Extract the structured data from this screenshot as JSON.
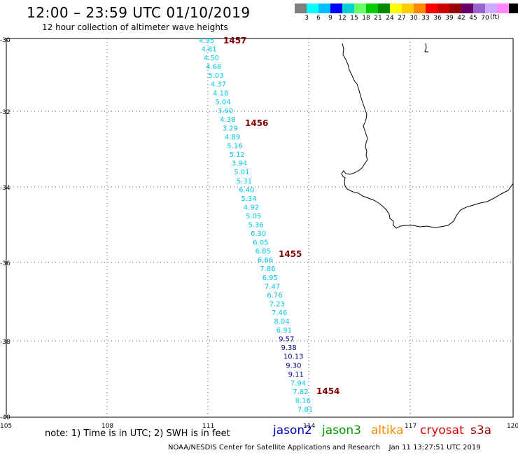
{
  "header": {
    "title": "12:00 – 23:59 UTC 01/10/2019",
    "subtitle": "12 hour collection of altimeter wave heights"
  },
  "legend": {
    "colors": [
      "#7f7f7f",
      "#00ffff",
      "#00bfff",
      "#0000ff",
      "#00d0d0",
      "#66ff66",
      "#00cc00",
      "#008800",
      "#ffff00",
      "#ffcc00",
      "#ff8800",
      "#ff0000",
      "#cc0000",
      "#990000",
      "#660066",
      "#9966cc",
      "#ccaaff",
      "#ff88ff",
      "#000000"
    ],
    "labels": [
      "3",
      "6",
      "9",
      "12",
      "15",
      "18",
      "21",
      "24",
      "27",
      "30",
      "33",
      "36",
      "39",
      "42",
      "45",
      "70"
    ],
    "unit": "(ft)"
  },
  "axes": {
    "lat_labels": [
      "-30",
      "-32",
      "-34",
      "-36",
      "-38",
      "-40"
    ],
    "lon_labels": [
      "105",
      "108",
      "111",
      "114",
      "117",
      "120"
    ]
  },
  "track": {
    "cyan_color": "#00c8e8",
    "blue_color": "#00008b",
    "points": [
      {
        "v": "4.95",
        "c": "cyan"
      },
      {
        "v": "4.81",
        "c": "cyan"
      },
      {
        "v": "4.50",
        "c": "cyan"
      },
      {
        "v": "4.68",
        "c": "cyan"
      },
      {
        "v": "5.03",
        "c": "cyan"
      },
      {
        "v": "4.37",
        "c": "cyan"
      },
      {
        "v": "4.18",
        "c": "cyan"
      },
      {
        "v": "5.04",
        "c": "cyan"
      },
      {
        "v": "3.60",
        "c": "cyan"
      },
      {
        "v": "4.38",
        "c": "cyan"
      },
      {
        "v": "3.29",
        "c": "cyan"
      },
      {
        "v": "4.89",
        "c": "cyan"
      },
      {
        "v": "5.16",
        "c": "cyan"
      },
      {
        "v": "5.12",
        "c": "cyan"
      },
      {
        "v": "3.94",
        "c": "cyan"
      },
      {
        "v": "5.01",
        "c": "cyan"
      },
      {
        "v": "5.31",
        "c": "cyan"
      },
      {
        "v": "6.40",
        "c": "cyan"
      },
      {
        "v": "5.34",
        "c": "cyan"
      },
      {
        "v": "4.92",
        "c": "cyan"
      },
      {
        "v": "5.05",
        "c": "cyan"
      },
      {
        "v": "5.36",
        "c": "cyan"
      },
      {
        "v": "6.30",
        "c": "cyan"
      },
      {
        "v": "6.05",
        "c": "cyan"
      },
      {
        "v": "6.85",
        "c": "cyan"
      },
      {
        "v": "6.66",
        "c": "cyan"
      },
      {
        "v": "7.86",
        "c": "cyan"
      },
      {
        "v": "6.95",
        "c": "cyan"
      },
      {
        "v": "7.47",
        "c": "cyan"
      },
      {
        "v": "6.76",
        "c": "cyan"
      },
      {
        "v": "7.23",
        "c": "cyan"
      },
      {
        "v": "7.46",
        "c": "cyan"
      },
      {
        "v": "8.04",
        "c": "cyan"
      },
      {
        "v": "6.91",
        "c": "cyan"
      },
      {
        "v": "9.57",
        "c": "blue"
      },
      {
        "v": "9.38",
        "c": "blue"
      },
      {
        "v": "10.13",
        "c": "blue"
      },
      {
        "v": "9.30",
        "c": "blue"
      },
      {
        "v": "9.11",
        "c": "blue"
      },
      {
        "v": "7.94",
        "c": "cyan"
      },
      {
        "v": "7.82",
        "c": "cyan"
      },
      {
        "v": "8.16",
        "c": "cyan"
      },
      {
        "v": "7.81",
        "c": "cyan"
      }
    ],
    "pass_labels": [
      "1457",
      "1456",
      "1455",
      "1454"
    ]
  },
  "note": "note:  1) Time is in UTC; 2) SWH is in feet",
  "satellites": [
    {
      "name": "jason2",
      "color": "#0000cc"
    },
    {
      "name": "jason3",
      "color": "#009900"
    },
    {
      "name": "altika",
      "color": "#ff8800"
    },
    {
      "name": "cryosat",
      "color": "#dd0000"
    },
    {
      "name": "s3a",
      "color": "#990000"
    }
  ],
  "footer": "NOAA/NESDIS Center for Satellite Applications and Research    Jan 11 13:27:51 UTC 2019"
}
